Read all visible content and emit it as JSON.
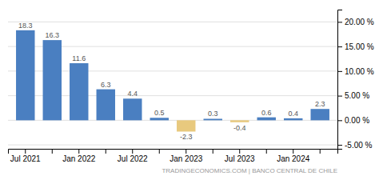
{
  "chart_data": {
    "type": "bar",
    "categories": [
      "Jul 2021",
      null,
      "Jan 2022",
      null,
      "Jul 2022",
      null,
      "Jan 2023",
      null,
      "Jul 2023",
      null,
      "Jan 2024",
      null
    ],
    "values": [
      18.3,
      16.3,
      11.6,
      6.3,
      4.4,
      0.5,
      -2.3,
      0.3,
      -0.4,
      0.6,
      0.4,
      2.3
    ],
    "colors": [
      "#4a7fc1",
      "#4a7fc1",
      "#4a7fc1",
      "#4a7fc1",
      "#4a7fc1",
      "#4a7fc1",
      "#e8c97e",
      "#4a7fc1",
      "#e8c97e",
      "#4a7fc1",
      "#4a7fc1",
      "#4a7fc1"
    ],
    "ylim": [
      -5.8,
      22.5
    ],
    "yticks": [
      {
        "value": -5.0,
        "label": "-5.00 %"
      },
      {
        "value": 0.0,
        "label": "0.00 %"
      },
      {
        "value": 5.0,
        "label": "5.00 %"
      },
      {
        "value": 10.0,
        "label": "10.00 %"
      },
      {
        "value": 15.0,
        "label": "15.00 %"
      },
      {
        "value": 20.0,
        "label": "20.00 %"
      }
    ],
    "grid": true,
    "data_labels": true,
    "annotations": [
      "TRADINGECONOMICS.COM | BANCO CENTRAL DE CHILE"
    ]
  }
}
